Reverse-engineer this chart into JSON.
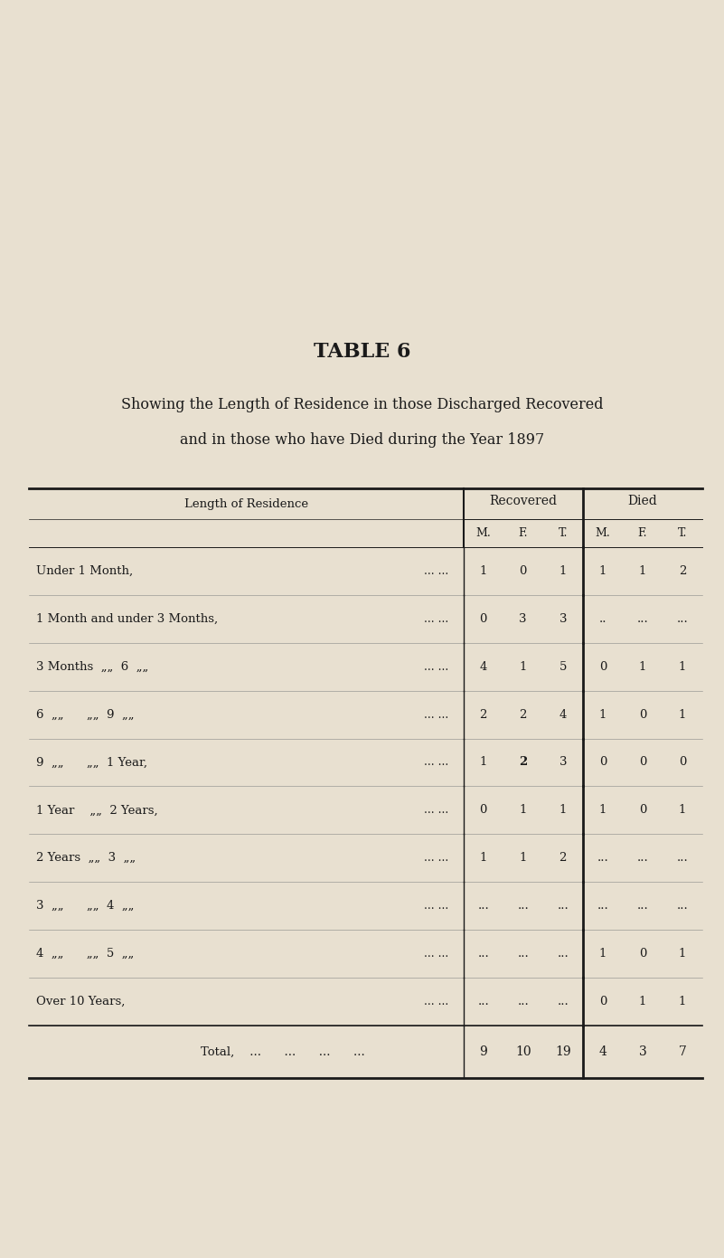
{
  "title": "TABLE 6",
  "subtitle_line1": "Showing the Length of Residence in those Discharged Recovered",
  "subtitle_line2": "and in those who have Died during the Year 1897",
  "bg_color": "#e8e0d0",
  "header_group1": "Recovered",
  "header_group2": "Died",
  "col_headers": [
    "M.",
    "F.",
    "T.",
    "M.",
    "F.",
    "T."
  ],
  "row_label_header": "Length of Residence",
  "rows": [
    {
      "label": "Under 1 Month,",
      "dots": "...          ...         ...         ...",
      "rec_m": "1",
      "rec_f": "0",
      "rec_t": "1",
      "die_m": "1",
      "die_f": "1",
      "die_t": "2"
    },
    {
      "label": "1 Month and under 3 Months,",
      "dots": "..         ...",
      "rec_m": "0",
      "rec_f": "3",
      "rec_t": "3",
      "die_m": "..",
      "die_f": "...",
      "die_t": "..."
    },
    {
      "label": "3 Months  „„  6  „„",
      "dots": "...         ...",
      "rec_m": "4",
      "rec_f": "1",
      "rec_t": "5",
      "die_m": "0",
      "die_f": "1",
      "die_t": "1"
    },
    {
      "label": "6  „„      „„  9  „„",
      "dots": "...         ...",
      "rec_m": "2",
      "rec_f": "2",
      "rec_t": "4",
      "die_m": "1",
      "die_f": "0",
      "die_t": "1"
    },
    {
      "label": "9  „„      „„  1 Year,",
      "dots": "...         ...",
      "rec_m": "1",
      "rec_f": "2",
      "rec_t": "3",
      "die_m": "0",
      "die_f": "0",
      "die_t": "0"
    },
    {
      "label": "1 Year    „„  2 Years,",
      "dots": "...         ...",
      "rec_m": "0",
      "rec_f": "1",
      "rec_t": "1",
      "die_m": "1",
      "die_f": "0",
      "die_t": "1"
    },
    {
      "label": "2 Years  „„  3  „„",
      "dots": "...         ...",
      "rec_m": "1",
      "rec_f": "1",
      "rec_t": "2",
      "die_m": "...",
      "die_f": "...",
      "die_t": "..."
    },
    {
      "label": "3  „„      „„  4  „„",
      "dots": "...         ...",
      "rec_m": "...",
      "rec_f": "...",
      "rec_t": "...",
      "die_m": "...",
      "die_f": "...",
      "die_t": "..."
    },
    {
      "label": "4  „„      „„  5  „„",
      "dots": "...         ...",
      "rec_m": "...",
      "rec_f": "...",
      "rec_t": "...",
      "die_m": "1",
      "die_f": "0",
      "die_t": "1"
    },
    {
      "label": "Over 10 Years,",
      "dots": "...   ...   ...   ...   ...",
      "rec_m": "...",
      "rec_f": "...",
      "rec_t": "...",
      "die_m": "0",
      "die_f": "1",
      "die_t": "1"
    }
  ],
  "total_label": "Total,",
  "total_dots": "...       ...       ...       ...",
  "total_rec_m": "9",
  "total_rec_f": "10",
  "total_rec_t": "19",
  "total_die_m": "4",
  "total_die_f": "3",
  "total_die_t": "7"
}
